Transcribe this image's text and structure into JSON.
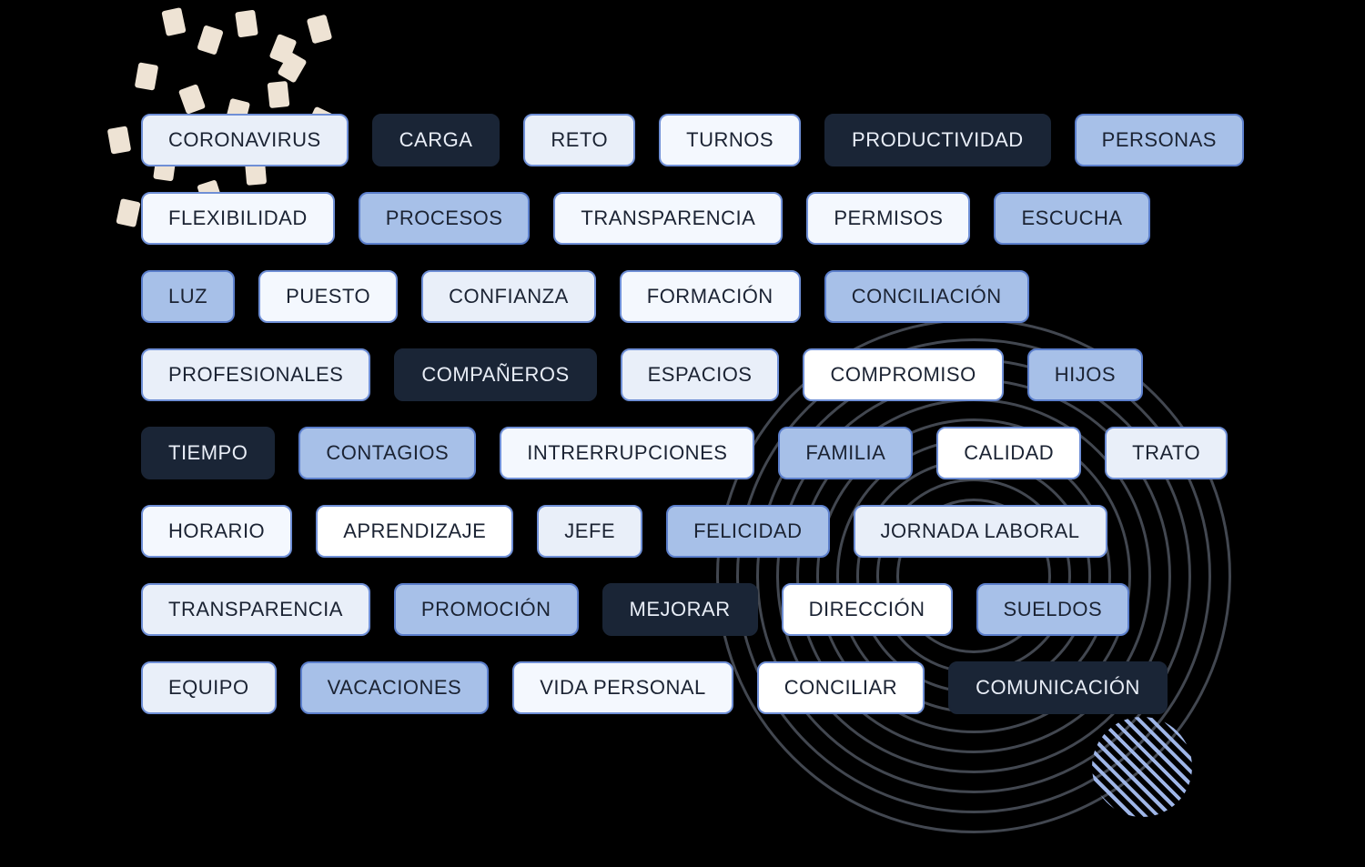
{
  "type": "tag-cloud",
  "background_color": "#000000",
  "tag_fontsize": 22,
  "tag_font_weight": 500,
  "tag_border_radius": 10,
  "row_gap": 28,
  "col_gap": 26,
  "variants": {
    "light": {
      "bg": "#e9eff9",
      "fg": "#1b2333",
      "border": "#6f8fd6"
    },
    "pale": {
      "bg": "#f4f8fe",
      "fg": "#1b2333",
      "border": "#6f8fd6"
    },
    "mid": {
      "bg": "#a7c0e8",
      "fg": "#1b2333",
      "border": "#5b7ecb"
    },
    "white": {
      "bg": "#ffffff",
      "fg": "#1b2333",
      "border": "#6f8fd6"
    },
    "dark": {
      "bg": "#1a2536",
      "fg": "#e9eef7",
      "border": "#1a2536"
    }
  },
  "decor": {
    "confetti_color": "#eee3d4",
    "ring_color": "rgba(120,130,145,0.55)",
    "ring_count": 10,
    "hatch_color": "#9fb6e8"
  },
  "rows": [
    [
      {
        "label": "CORONAVIRUS",
        "variant": "light"
      },
      {
        "label": "CARGA",
        "variant": "dark"
      },
      {
        "label": "RETO",
        "variant": "light"
      },
      {
        "label": "TURNOS",
        "variant": "pale"
      },
      {
        "label": "PRODUCTIVIDAD",
        "variant": "dark"
      },
      {
        "label": "PERSONAS",
        "variant": "mid"
      }
    ],
    [
      {
        "label": "FLEXIBILIDAD",
        "variant": "pale"
      },
      {
        "label": "PROCESOS",
        "variant": "mid"
      },
      {
        "label": "TRANSPARENCIA",
        "variant": "pale"
      },
      {
        "label": "PERMISOS",
        "variant": "pale"
      },
      {
        "label": "ESCUCHA",
        "variant": "mid"
      }
    ],
    [
      {
        "label": "LUZ",
        "variant": "mid"
      },
      {
        "label": "PUESTO",
        "variant": "pale"
      },
      {
        "label": "CONFIANZA",
        "variant": "light"
      },
      {
        "label": "FORMACIÓN",
        "variant": "pale"
      },
      {
        "label": "CONCILIACIÓN",
        "variant": "mid"
      }
    ],
    [
      {
        "label": "PROFESIONALES",
        "variant": "light"
      },
      {
        "label": "COMPAÑEROS",
        "variant": "dark"
      },
      {
        "label": "ESPACIOS",
        "variant": "light"
      },
      {
        "label": "COMPROMISO",
        "variant": "white"
      },
      {
        "label": "HIJOS",
        "variant": "mid"
      }
    ],
    [
      {
        "label": "TIEMPO",
        "variant": "dark"
      },
      {
        "label": "CONTAGIOS",
        "variant": "mid"
      },
      {
        "label": "INTRERRUPCIONES",
        "variant": "pale"
      },
      {
        "label": "FAMILIA",
        "variant": "mid"
      },
      {
        "label": "CALIDAD",
        "variant": "white"
      },
      {
        "label": "TRATO",
        "variant": "light"
      }
    ],
    [
      {
        "label": "HORARIO",
        "variant": "pale"
      },
      {
        "label": "APRENDIZAJE",
        "variant": "white"
      },
      {
        "label": "JEFE",
        "variant": "light"
      },
      {
        "label": "FELICIDAD",
        "variant": "mid"
      },
      {
        "label": "JORNADA LABORAL",
        "variant": "light"
      }
    ],
    [
      {
        "label": "TRANSPARENCIA",
        "variant": "light"
      },
      {
        "label": "PROMOCIÓN",
        "variant": "mid"
      },
      {
        "label": "MEJORAR",
        "variant": "dark"
      },
      {
        "label": "DIRECCIÓN",
        "variant": "white"
      },
      {
        "label": "SUELDOS",
        "variant": "mid"
      }
    ],
    [
      {
        "label": "EQUIPO",
        "variant": "light"
      },
      {
        "label": "VACACIONES",
        "variant": "mid"
      },
      {
        "label": "VIDA PERSONAL",
        "variant": "pale"
      },
      {
        "label": "CONCILIAR",
        "variant": "white"
      },
      {
        "label": "COMUNICACIÓN",
        "variant": "dark"
      }
    ]
  ],
  "confetti_positions": [
    [
      90,
      10,
      -12
    ],
    [
      130,
      30,
      18
    ],
    [
      170,
      12,
      -8
    ],
    [
      210,
      40,
      22
    ],
    [
      250,
      18,
      -15
    ],
    [
      60,
      70,
      10
    ],
    [
      110,
      95,
      -20
    ],
    [
      160,
      110,
      14
    ],
    [
      205,
      90,
      -6
    ],
    [
      250,
      120,
      25
    ],
    [
      30,
      140,
      -10
    ],
    [
      80,
      170,
      8
    ],
    [
      130,
      200,
      -18
    ],
    [
      40,
      220,
      12
    ],
    [
      180,
      175,
      -5
    ],
    [
      220,
      60,
      30
    ]
  ]
}
